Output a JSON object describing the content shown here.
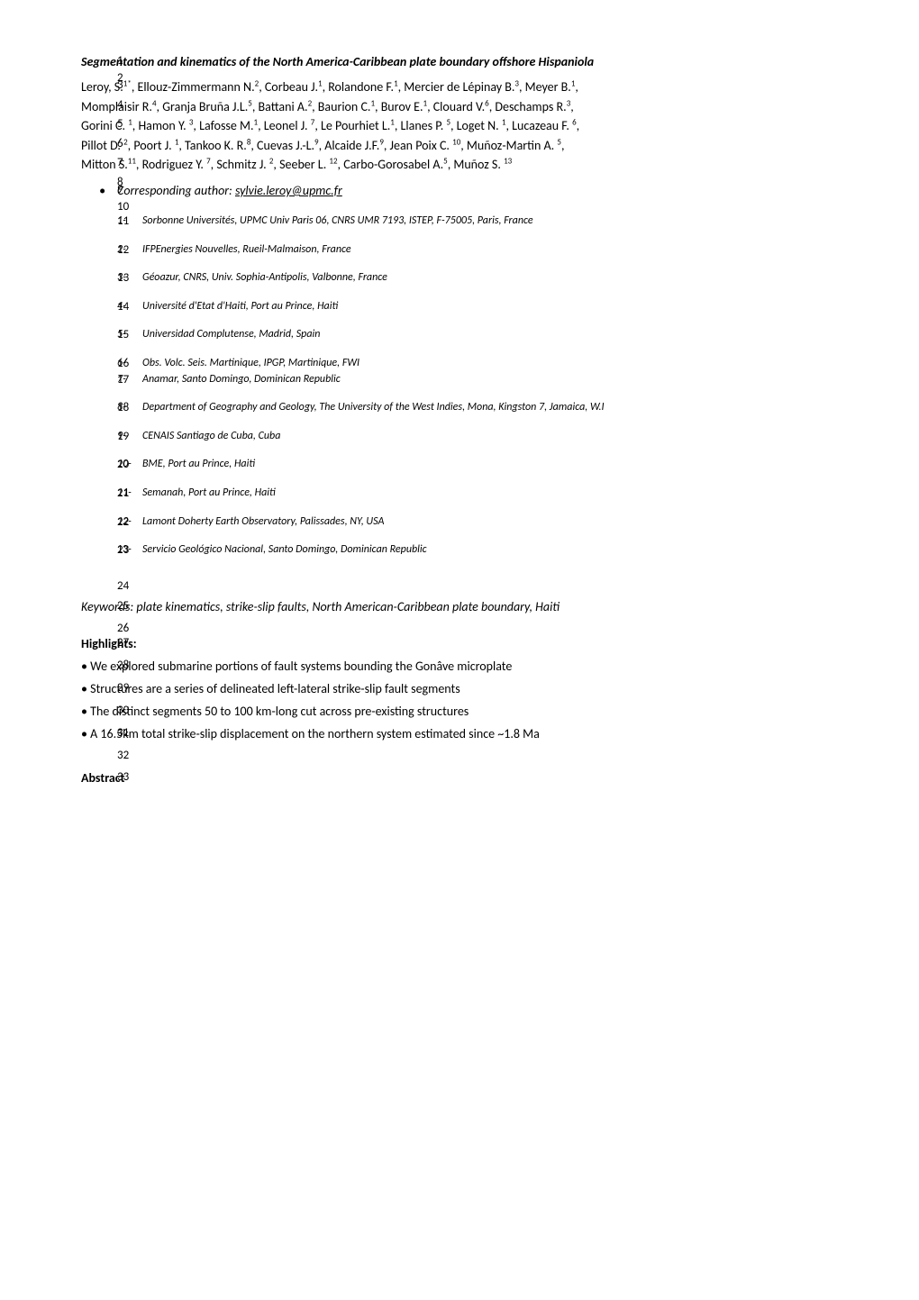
{
  "lineNumbers": [
    "1",
    "2",
    "3",
    "4",
    "5",
    "6",
    "7",
    "8",
    "9",
    "10",
    "11",
    "12",
    "13",
    "14",
    "15",
    "16",
    "17",
    "18",
    "19",
    "20",
    "21",
    "22",
    "23",
    "24",
    "25",
    "26",
    "27",
    "28",
    "29",
    "30",
    "31",
    "32",
    "33"
  ],
  "title": "Segmentation and kinematics of the North America-Caribbean plate boundary offshore Hispaniola",
  "authorLines": [
    "Leroy, S.<sup>1*</sup>, Ellouz-Zimmermann N.<sup>2</sup>, Corbeau J.<sup>1</sup>, Rolandone F.<sup>1</sup>, Mercier de Lépinay B.<sup>3</sup>, Meyer B.<sup>1</sup>,",
    "Momplaisir R.<sup>4</sup>, Granja Bruña J.L.<sup>5</sup>, Battani A.<sup>2</sup>, Baurion C.<sup>1</sup>, Burov E.<sup>1</sup>, Clouard V.<sup>6</sup>, Deschamps R.<sup>3</sup>,",
    "Gorini C. <sup>1</sup>, Hamon Y. <sup>3</sup>, Lafosse M.<sup>1</sup>, Leonel J. <sup>7</sup>, Le Pourhiet L.<sup>1</sup>, Llanes P. <sup>5</sup>, Loget N. <sup>1</sup>, Lucazeau F. <sup>6</sup>,",
    "Pillot D. <sup>2</sup>, Poort J. <sup>1</sup>, Tankoo K. R.<sup>8</sup>, Cuevas J.-L.<sup>9</sup>, Alcaide J.F.<sup>9</sup>, Jean Poix C. <sup>10</sup>, Muñoz-Martin A. <sup>5</sup>,",
    "Mitton S.<sup>11</sup>, Rodriguez Y. <sup>7</sup>, Schmitz J. <sup>2</sup>, Seeber L. <sup>12</sup>, Carbo-Gorosabel A.<sup>5</sup>, Muñoz S. <sup>13</sup>"
  ],
  "corresponding": "Corresponding author: ",
  "correspondingEmail": "sylvie.leroy@upmc.fr",
  "affiliations": [
    {
      "num": "1-",
      "text": "Sorbonne Universités, UPMC Univ Paris 06, CNRS UMR 7193, ISTEP, F-75005, Paris, France"
    },
    {
      "num": "2-",
      "text": "IFPEnergies Nouvelles, Rueil-Malmaison, France"
    },
    {
      "num": "3-",
      "text": "Géoazur, CNRS, Univ. Sophia-Antipolis, Valbonne, France"
    },
    {
      "num": "4-",
      "text": "Université d'Etat d'Haiti, Port au Prince, Haiti"
    },
    {
      "num": "5-",
      "text": "Universidad Complutense, Madrid, Spain"
    },
    {
      "num": "6-",
      "text": "Obs. Volc. Seis. Martinique, IPGP, Martinique, FWI"
    },
    {
      "num": "7-",
      "text": "Anamar, Santo Domingo, Dominican Republic"
    },
    {
      "num": "8-",
      "text": "Department of Geography and Geology, The University of the West Indies, Mona, Kingston 7, Jamaica, W.I"
    },
    {
      "num": "9-",
      "text": "CENAIS Santiago de Cuba, Cuba"
    },
    {
      "num": "10-",
      "text": "BME, Port au Prince, Haiti"
    },
    {
      "num": "11-",
      "text": "Semanah, Port au Prince, Haiti"
    },
    {
      "num": "12-",
      "text": "Lamont Doherty Earth Observatory, Palissades, NY, USA"
    },
    {
      "num": "13-",
      "text": "Servicio Geológico Nacional, Santo Domingo, Dominican Republic",
      "prefixNormal": true
    }
  ],
  "keywords": "Keywords: plate kinematics, strike-slip faults, North American-Caribbean plate boundary, Haiti",
  "highlightsHeading": "Highlights:",
  "highlights": [
    "• We explored submarine portions of fault systems bounding the Gonâve microplate",
    "• Structures are a series of delineated left-lateral strike-slip fault segments",
    "• The distinct segments 50 to 100 km-long cut across pre-existing structures",
    "• A 16.5km total strike-slip displacement on the northern system estimated since ~1.8 Ma"
  ],
  "abstractHeading": "Abstract"
}
